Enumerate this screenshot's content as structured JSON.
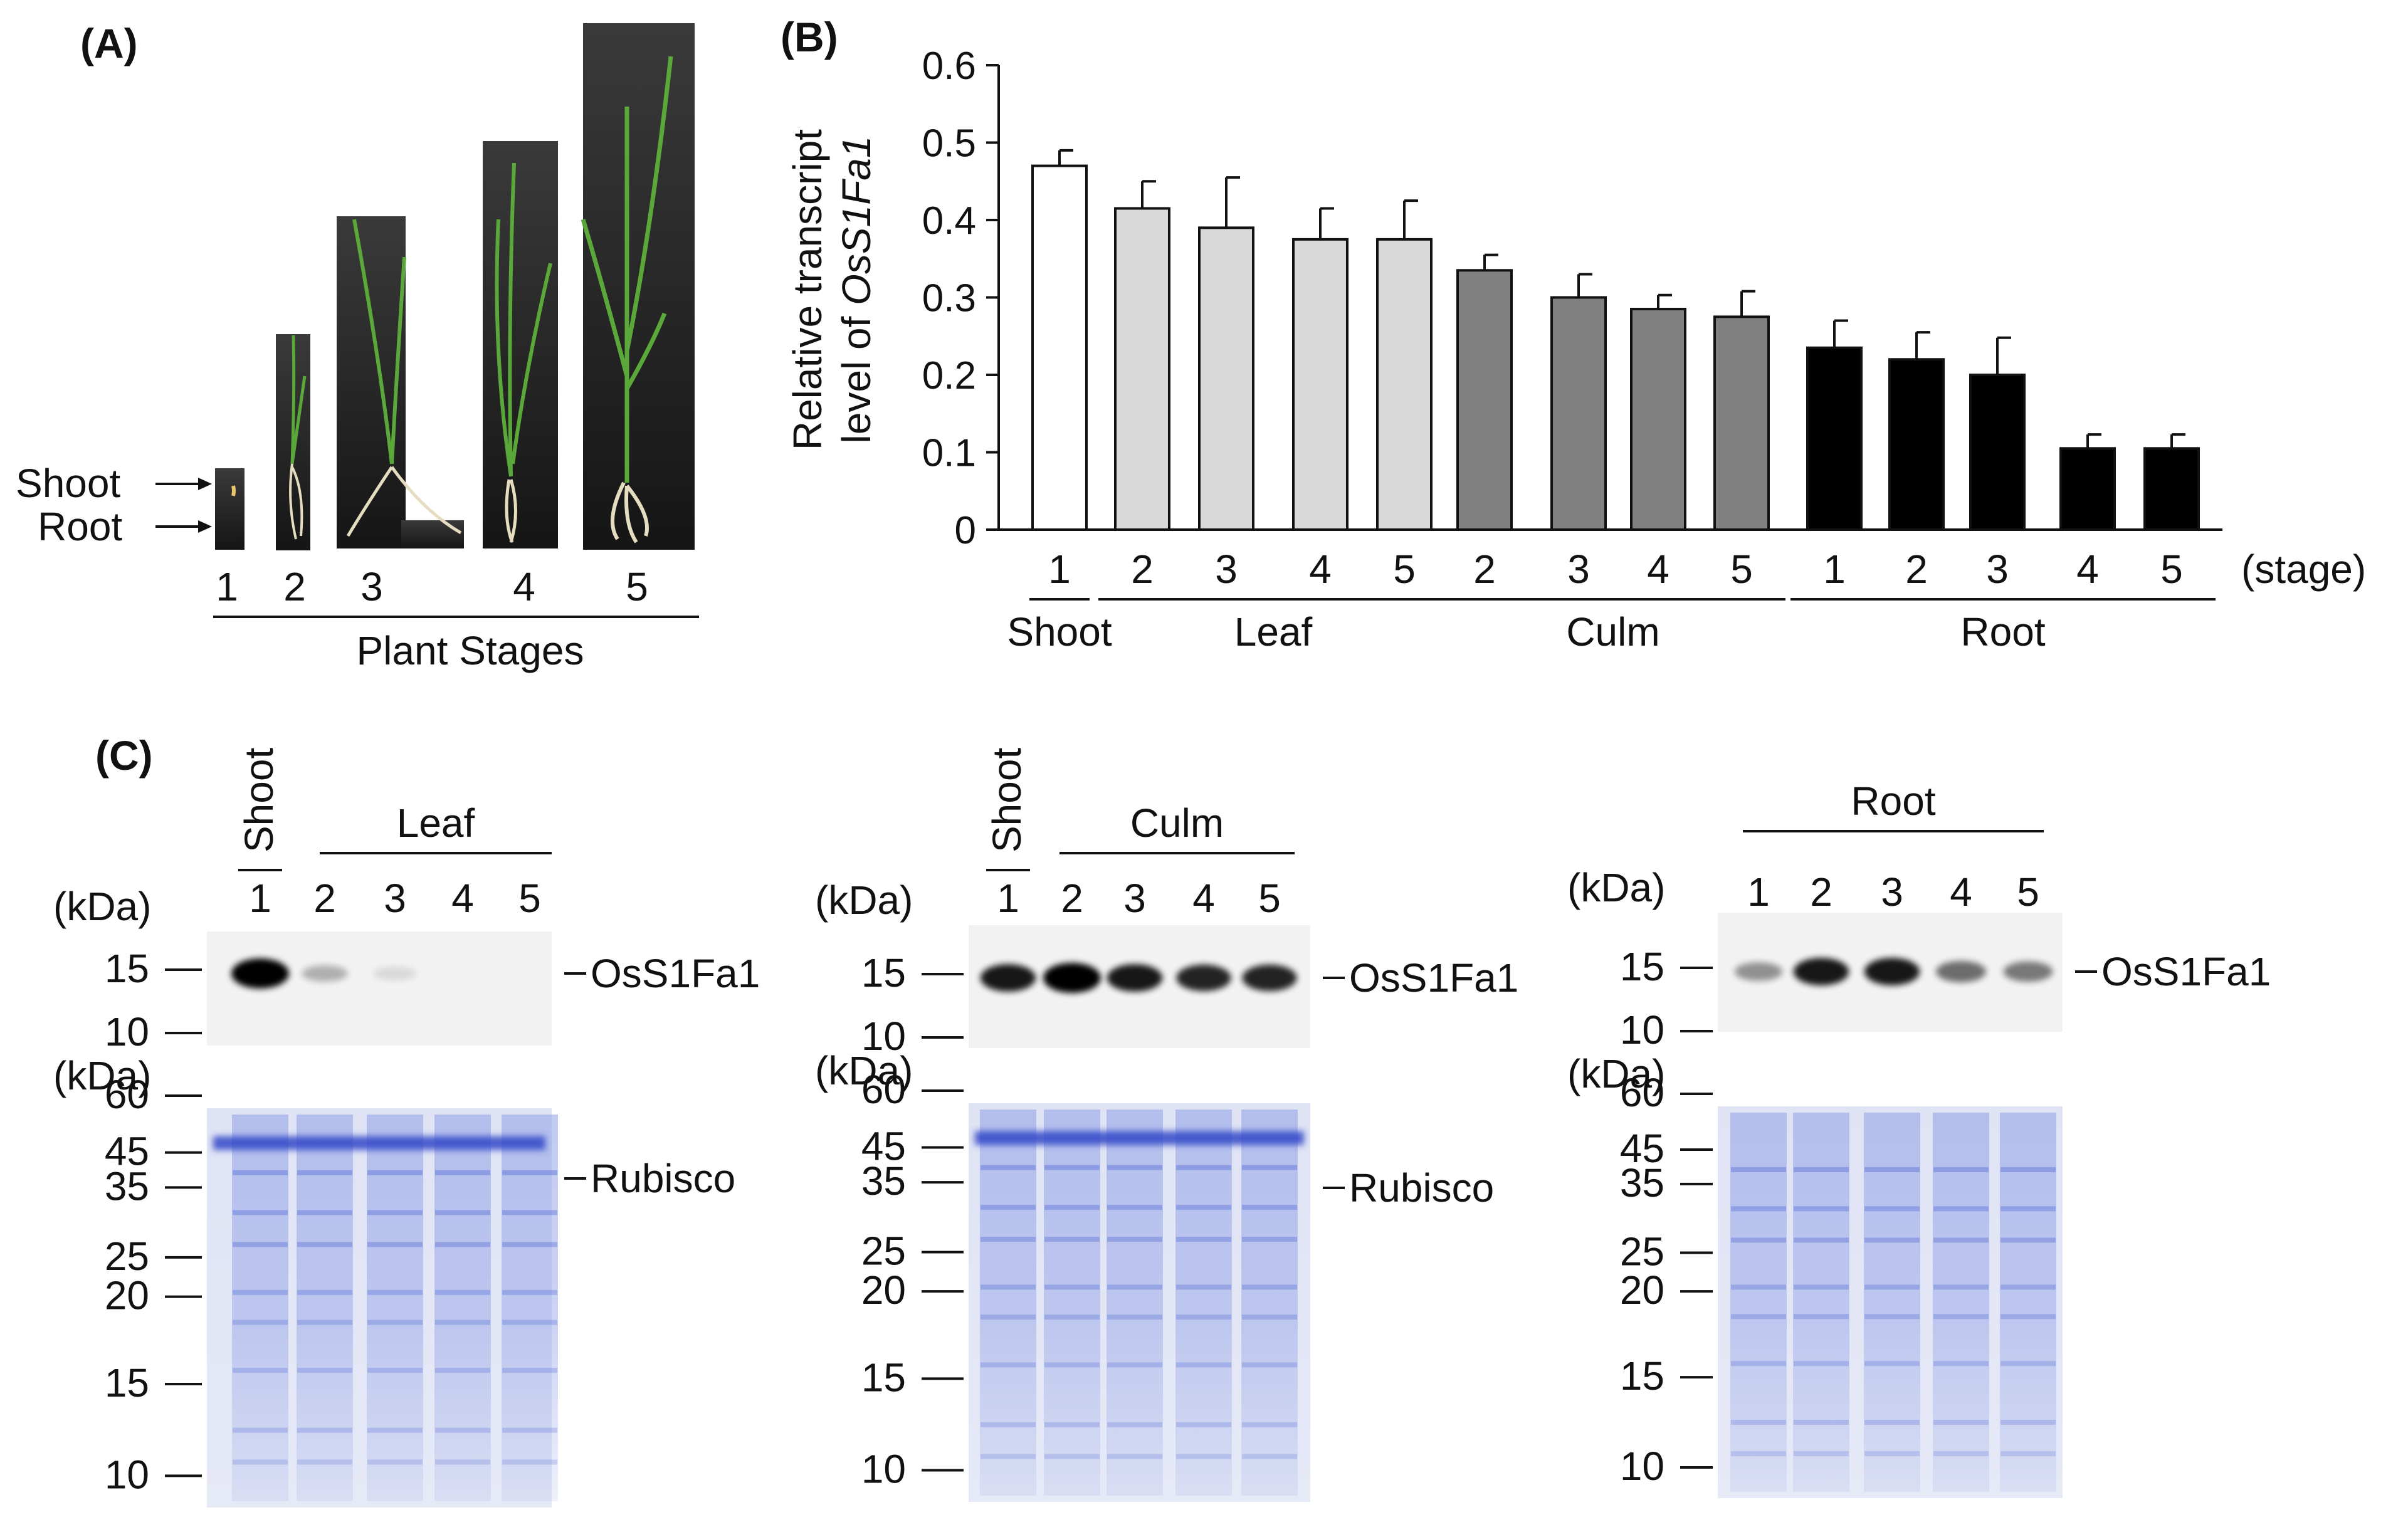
{
  "panel_labels": {
    "a": "(A)",
    "b": "(B)",
    "c": "(C)"
  },
  "panel_a": {
    "arrow_labels": [
      "Shoot",
      "Root"
    ],
    "stage_numbers": [
      "1",
      "2",
      "3",
      "4",
      "5"
    ],
    "caption": "Plant Stages"
  },
  "chart_data": {
    "type": "bar",
    "title": "",
    "ylabel_line1": "Relative  transcript",
    "ylabel_line2_prefix": "level  of ",
    "ylabel_line2_gene": "OsS1Fa1",
    "ylim": [
      0,
      0.6
    ],
    "yticks": [
      "0",
      "0.1",
      "0.2",
      "0.3",
      "0.4",
      "0.5",
      "0.6"
    ],
    "stage_unit": "(stage)",
    "colors": {
      "Shoot": "#ffffff",
      "Leaf": "#d9d9d9",
      "Culm": "#808080",
      "Root": "#000000"
    },
    "groups": [
      {
        "name": "Shoot",
        "stages": [
          "1"
        ],
        "values": [
          0.47
        ],
        "errors": [
          0.02
        ]
      },
      {
        "name": "Leaf",
        "stages": [
          "2",
          "3",
          "4",
          "5"
        ],
        "values": [
          0.415,
          0.39,
          0.375,
          0.375
        ],
        "errors": [
          0.035,
          0.065,
          0.04,
          0.05
        ]
      },
      {
        "name": "Culm",
        "stages": [
          "2",
          "3",
          "4",
          "5"
        ],
        "values": [
          0.335,
          0.3,
          0.285,
          0.275
        ],
        "errors": [
          0.02,
          0.03,
          0.018,
          0.033
        ]
      },
      {
        "name": "Root",
        "stages": [
          "1",
          "2",
          "3",
          "4",
          "5"
        ],
        "values": [
          0.235,
          0.22,
          0.2,
          0.105,
          0.105
        ],
        "errors": [
          0.035,
          0.035,
          0.048,
          0.018,
          0.018
        ]
      }
    ]
  },
  "panel_c": {
    "kda_label": "(kDa)",
    "band_label": "OsS1Fa1",
    "rubisco_label": "Rubisco",
    "markers_top": [
      "15",
      "10"
    ],
    "markers_bottom": [
      "60",
      "45",
      "35",
      "25",
      "20",
      "15",
      "10"
    ],
    "blots": [
      {
        "id": "leaf",
        "shoot_label": "Shoot",
        "group_label": "Leaf",
        "lanes": [
          "1",
          "2",
          "3",
          "4",
          "5"
        ],
        "has_rubisco": true
      },
      {
        "id": "culm",
        "shoot_label": "Shoot",
        "group_label": "Culm",
        "lanes": [
          "1",
          "2",
          "3",
          "4",
          "5"
        ],
        "has_rubisco": true
      },
      {
        "id": "root",
        "shoot_label": "",
        "group_label": "Root",
        "lanes": [
          "1",
          "2",
          "3",
          "4",
          "5"
        ],
        "has_rubisco": false
      }
    ]
  }
}
